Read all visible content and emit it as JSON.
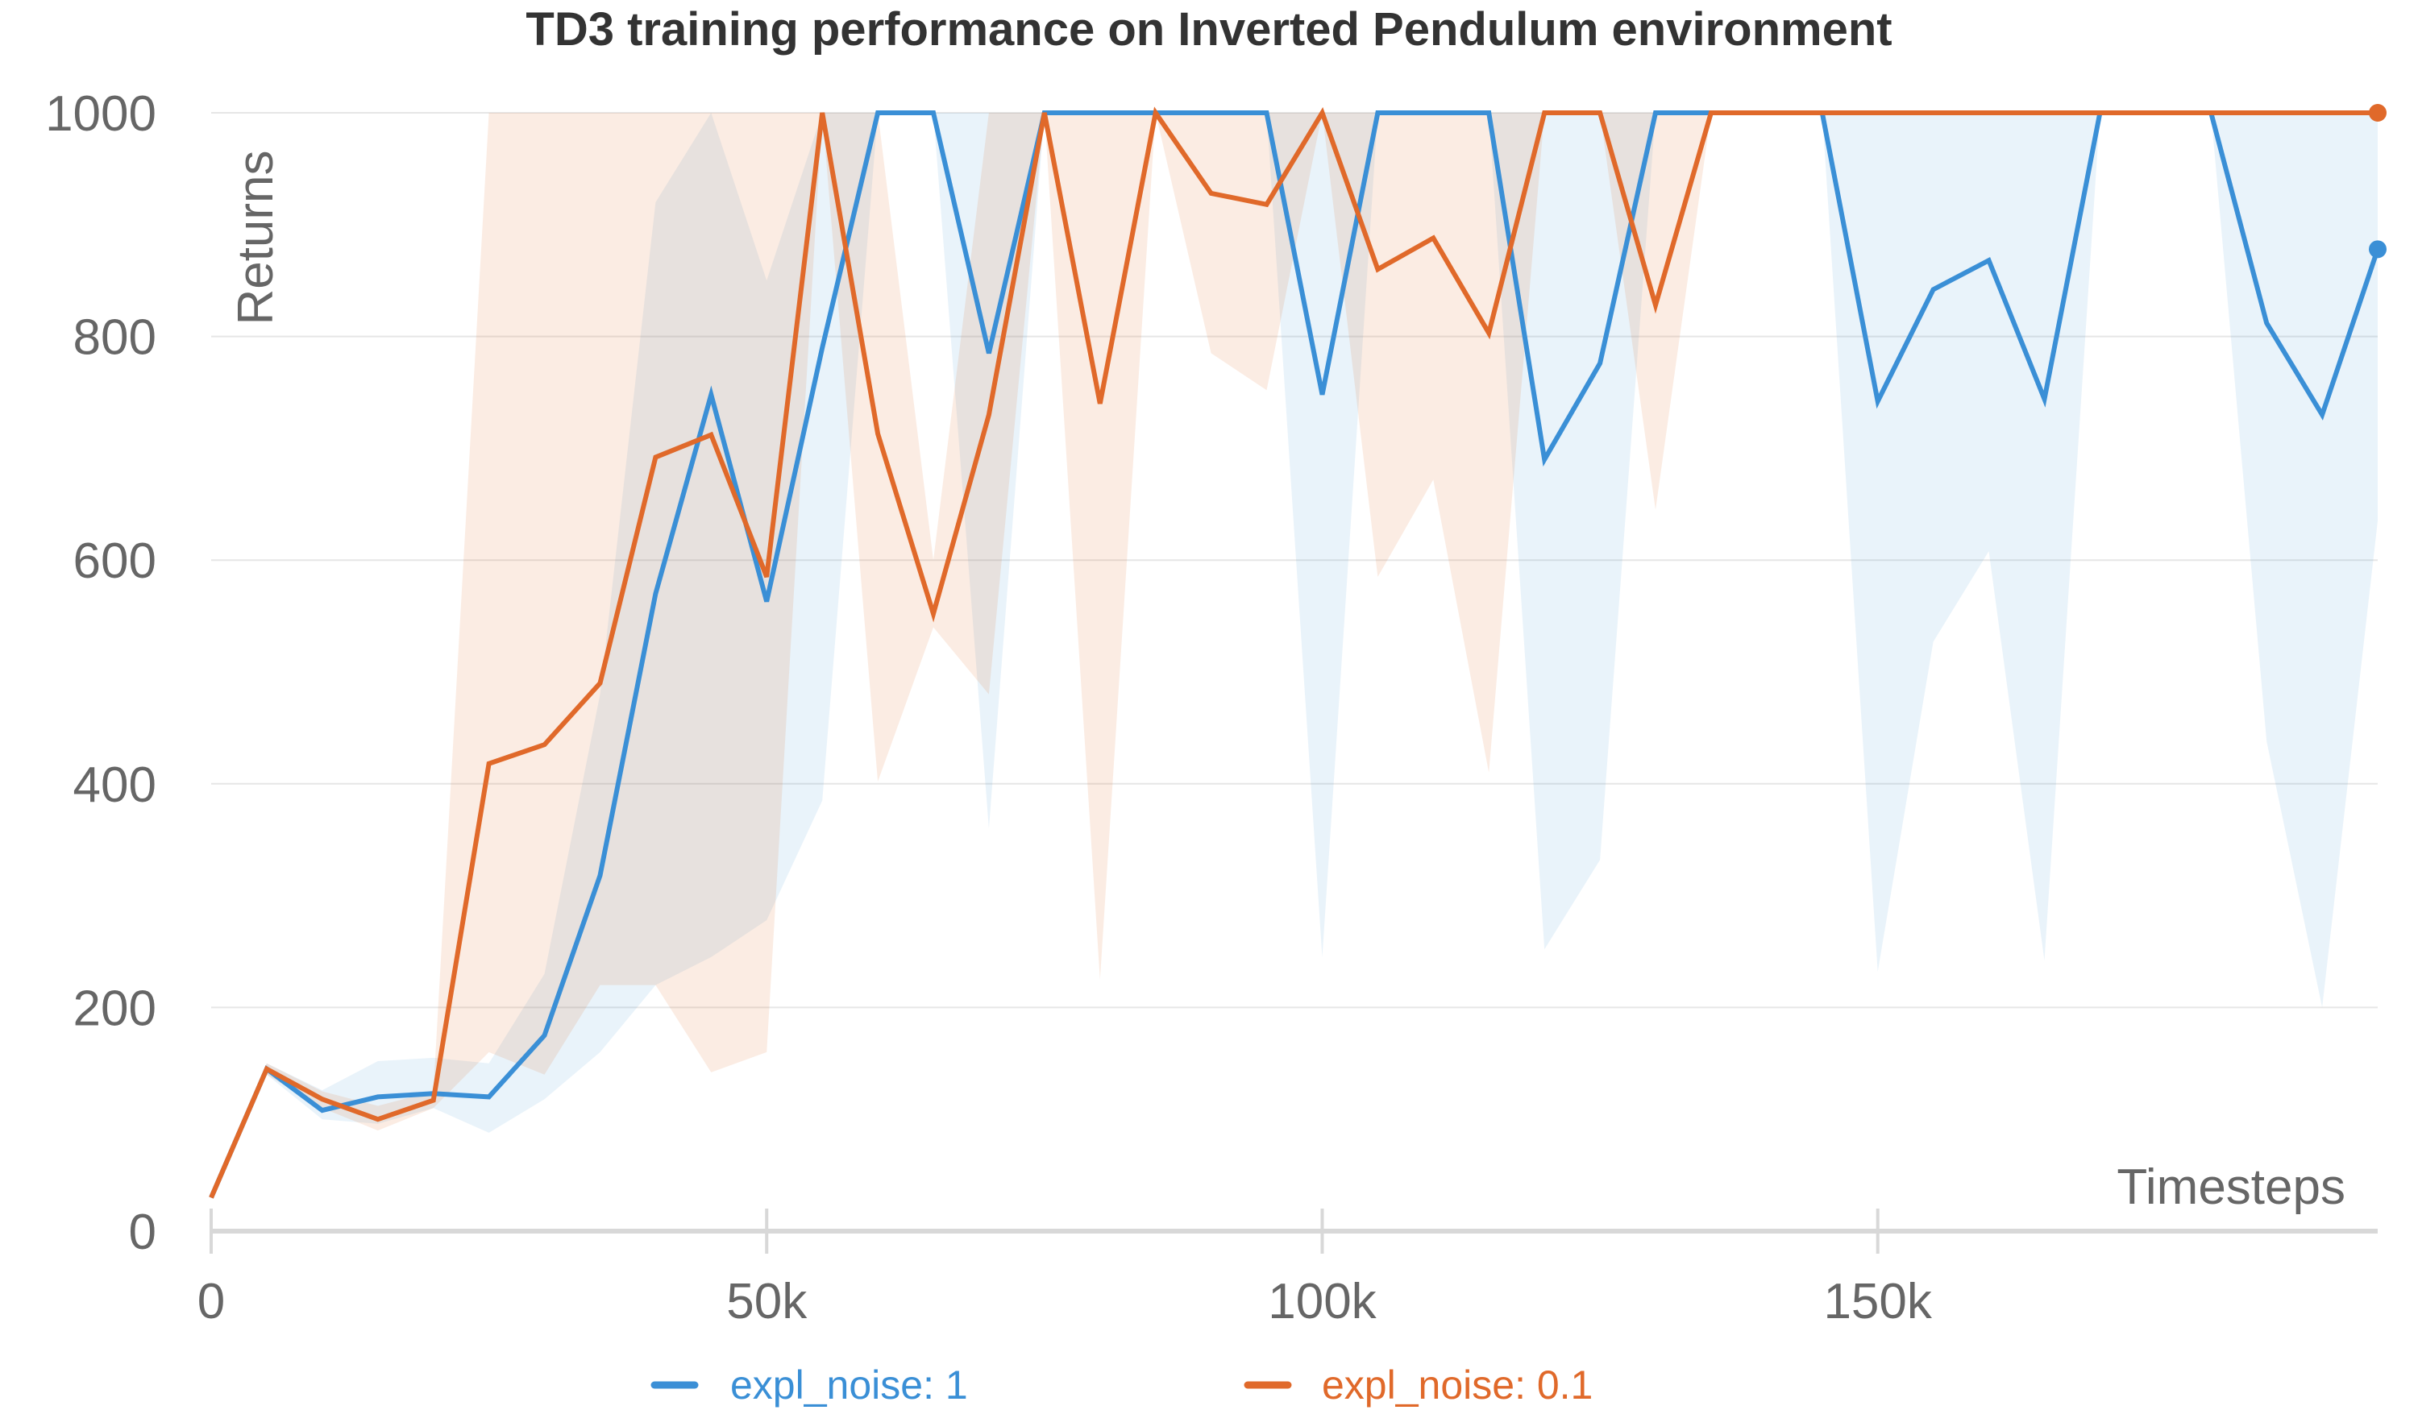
{
  "chart_data": {
    "type": "line",
    "title": "TD3 training performance on Inverted Pendulum environment",
    "xlabel": "Timesteps",
    "ylabel": "Returns",
    "xlim": [
      0,
      195000
    ],
    "ylim": [
      0,
      1000
    ],
    "x_ticks": [
      0,
      50000,
      100000,
      150000
    ],
    "x_tick_labels": [
      "0",
      "50k",
      "100k",
      "150k"
    ],
    "y_ticks": [
      0,
      200,
      400,
      600,
      800,
      1000
    ],
    "y_tick_labels": [
      "0",
      "200",
      "400",
      "600",
      "800",
      "1000"
    ],
    "grid": true,
    "legend_position": "bottom-center",
    "x": [
      0,
      5000,
      10000,
      15000,
      20000,
      25000,
      30000,
      35000,
      40000,
      45000,
      50000,
      55000,
      60000,
      65000,
      70000,
      75000,
      80000,
      85000,
      90000,
      95000,
      100000,
      105000,
      110000,
      115000,
      120000,
      125000,
      130000,
      135000,
      140000,
      145000,
      150000,
      155000,
      160000,
      165000,
      170000,
      175000,
      180000,
      185000,
      190000,
      195000
    ],
    "series": [
      {
        "name": "expl_noise: 1",
        "color": "#3a8fd6",
        "values": [
          30,
          145,
          108,
          120,
          123,
          120,
          175,
          318,
          570,
          748,
          563,
          790,
          1000,
          1000,
          785,
          1000,
          1000,
          1000,
          1000,
          1000,
          748,
          1000,
          1000,
          1000,
          690,
          776,
          1000,
          1000,
          1000,
          1000,
          742,
          842,
          868,
          744,
          1000,
          1000,
          1000,
          812,
          730,
          878
        ],
        "lower": [
          30,
          140,
          100,
          96,
          110,
          88,
          118,
          160,
          220,
          245,
          278,
          385,
          1000,
          1000,
          360,
          1000,
          1000,
          1000,
          1000,
          1000,
          245,
          1000,
          1000,
          1000,
          252,
          332,
          1000,
          1000,
          1000,
          1000,
          232,
          527,
          608,
          242,
          1000,
          1000,
          1000,
          438,
          200,
          635
        ],
        "upper": [
          30,
          150,
          126,
          152,
          155,
          150,
          230,
          480,
          920,
          1000,
          850,
          1000,
          1000,
          1000,
          1000,
          1000,
          1000,
          1000,
          1000,
          1000,
          1000,
          1000,
          1000,
          1000,
          1000,
          1000,
          1000,
          1000,
          1000,
          1000,
          1000,
          1000,
          1000,
          1000,
          1000,
          1000,
          1000,
          1000,
          1000,
          1000
        ]
      },
      {
        "name": "expl_noise: 0.1",
        "color": "#e0692a",
        "values": [
          30,
          145,
          118,
          100,
          117,
          418,
          435,
          490,
          692,
          712,
          585,
          1000,
          713,
          552,
          730,
          1000,
          740,
          1000,
          928,
          918,
          1000,
          860,
          888,
          803,
          1000,
          1000,
          828,
          1000,
          1000,
          1000,
          1000,
          1000,
          1000,
          1000,
          1000,
          1000,
          1000,
          1000,
          1000,
          1000
        ],
        "lower": [
          30,
          140,
          110,
          90,
          110,
          160,
          140,
          220,
          220,
          142,
          160,
          1000,
          402,
          540,
          480,
          1000,
          225,
          1000,
          785,
          752,
          1000,
          585,
          672,
          410,
          1000,
          1000,
          645,
          1000,
          1000,
          1000,
          1000,
          1000,
          1000,
          1000,
          1000,
          1000,
          1000,
          1000,
          1000,
          1000
        ],
        "upper": [
          30,
          150,
          125,
          112,
          125,
          1000,
          1000,
          1000,
          1000,
          1000,
          1000,
          1000,
          1000,
          600,
          1000,
          1000,
          1000,
          1000,
          1000,
          1000,
          1000,
          1000,
          1000,
          1000,
          1000,
          1000,
          1000,
          1000,
          1000,
          1000,
          1000,
          1000,
          1000,
          1000,
          1000,
          1000,
          1000,
          1000,
          1000,
          1000
        ]
      }
    ]
  }
}
